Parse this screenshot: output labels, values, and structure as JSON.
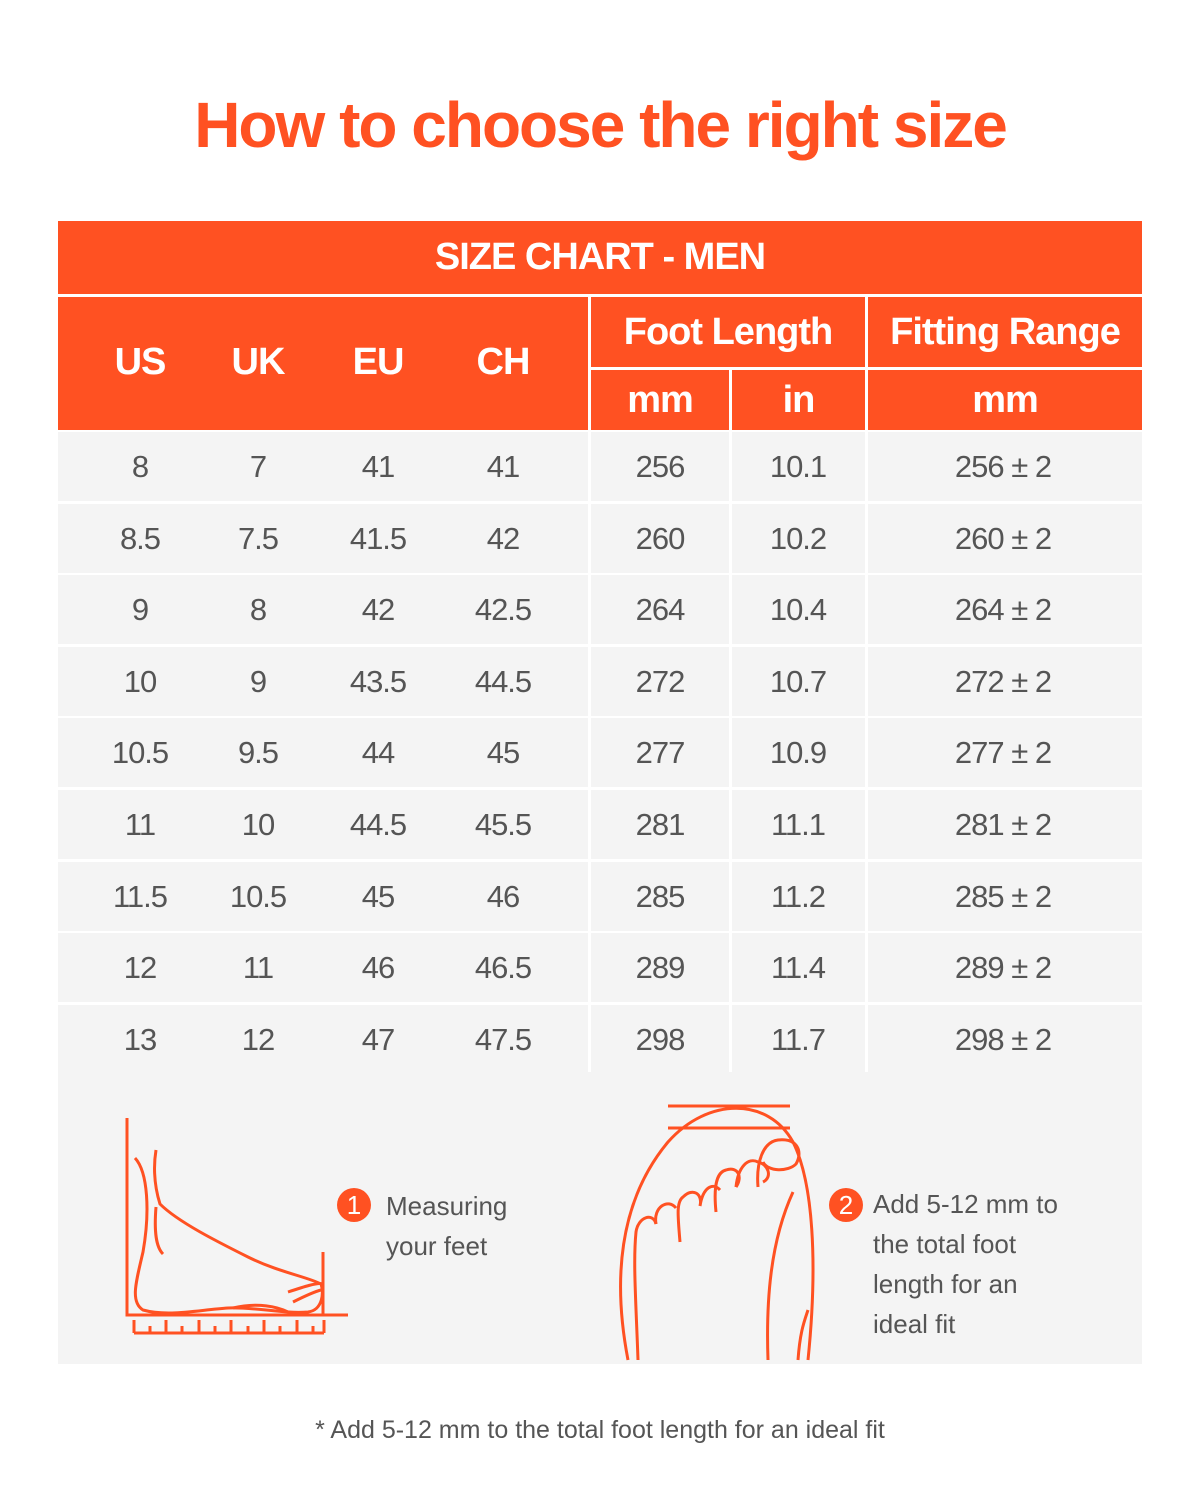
{
  "title": "How to choose the right size",
  "table": {
    "caption": "SIZE CHART - MEN",
    "headers": {
      "us": "US",
      "uk": "UK",
      "eu": "EU",
      "ch": "CH",
      "foot_length": "Foot Length",
      "fitting_range": "Fitting Range",
      "mm": "mm",
      "in": "in",
      "fit_mm": "mm"
    },
    "rows": [
      [
        "8",
        "7",
        "41",
        "41",
        "256",
        "10.1",
        "256 ± 2"
      ],
      [
        "8.5",
        "7.5",
        "41.5",
        "42",
        "260",
        "10.2",
        "260 ± 2"
      ],
      [
        "9",
        "8",
        "42",
        "42.5",
        "264",
        "10.4",
        "264 ± 2"
      ],
      [
        "10",
        "9",
        "43.5",
        "44.5",
        "272",
        "10.7",
        "272 ± 2"
      ],
      [
        "10.5",
        "9.5",
        "44",
        "45",
        "277",
        "10.9",
        "277 ± 2"
      ],
      [
        "11",
        "10",
        "44.5",
        "45.5",
        "281",
        "11.1",
        "281 ± 2"
      ],
      [
        "11.5",
        "10.5",
        "45",
        "46",
        "285",
        "11.2",
        "285 ± 2"
      ],
      [
        "12",
        "11",
        "46",
        "46.5",
        "289",
        "11.4",
        "289 ± 2"
      ],
      [
        "13",
        "12",
        "47",
        "47.5",
        "298",
        "11.7",
        "298 ± 2"
      ]
    ]
  },
  "steps": [
    {
      "number": "1",
      "text": "Measuring\nyour feet",
      "icon": "foot-side-measure-icon"
    },
    {
      "number": "2",
      "text": "Add 5-12 mm to\nthe total foot\nlength for an\nideal fit",
      "icon": "foot-top-icon"
    }
  ],
  "footnote": "* Add 5-12 mm to the total foot length for an ideal fit",
  "colors": {
    "accent": "#ff5122",
    "row_bg": "#f4f4f4",
    "text": "#555555"
  }
}
